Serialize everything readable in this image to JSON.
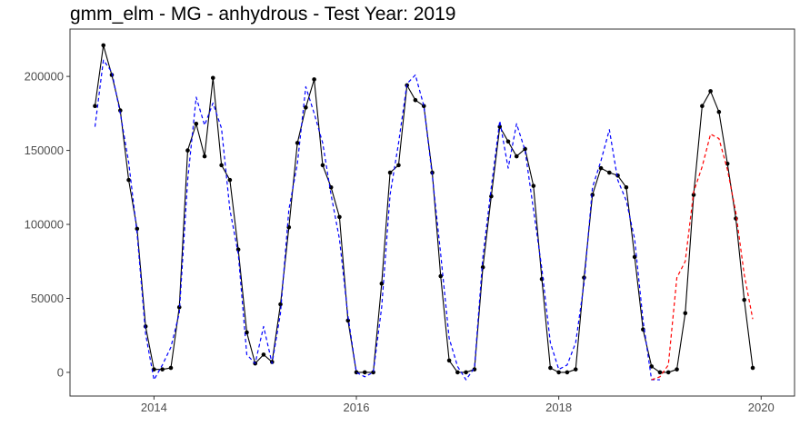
{
  "chart_data": {
    "type": "line",
    "title": "gmm_elm - MG - anhydrous - Test Year: 2019",
    "xlabel": "",
    "ylabel": "",
    "xlim": [
      2013.17,
      2020.33
    ],
    "ylim": [
      -16000,
      232000
    ],
    "x_ticks": [
      2014,
      2016,
      2018,
      2020
    ],
    "x_tick_labels": [
      "2014",
      "2016",
      "2018",
      "2020"
    ],
    "y_ticks": [
      0,
      50000,
      100000,
      150000,
      200000
    ],
    "y_tick_labels": [
      "0",
      "50000",
      "100000",
      "150000",
      "200000"
    ],
    "grid": false,
    "legend": "none",
    "series": [
      {
        "style": "solid-with-points",
        "color": "#000000",
        "x": [
          2013.417,
          2013.5,
          2013.583,
          2013.667,
          2013.75,
          2013.833,
          2013.917,
          2014.0,
          2014.083,
          2014.167,
          2014.25,
          2014.333,
          2014.417,
          2014.5,
          2014.583,
          2014.667,
          2014.75,
          2014.833,
          2014.917,
          2015.0,
          2015.083,
          2015.167,
          2015.25,
          2015.333,
          2015.417,
          2015.5,
          2015.583,
          2015.667,
          2015.75,
          2015.833,
          2015.917,
          2016.0,
          2016.083,
          2016.167,
          2016.25,
          2016.333,
          2016.417,
          2016.5,
          2016.583,
          2016.667,
          2016.75,
          2016.833,
          2016.917,
          2017.0,
          2017.083,
          2017.167,
          2017.25,
          2017.333,
          2017.417,
          2017.5,
          2017.583,
          2017.667,
          2017.75,
          2017.833,
          2017.917,
          2018.0,
          2018.083,
          2018.167,
          2018.25,
          2018.333,
          2018.417,
          2018.5,
          2018.583,
          2018.667,
          2018.75,
          2018.833,
          2018.917,
          2019.0,
          2019.083,
          2019.167,
          2019.25,
          2019.333,
          2019.417,
          2019.5,
          2019.583,
          2019.667,
          2019.75,
          2019.833,
          2019.917
        ],
        "y": [
          180000,
          221000,
          201000,
          177000,
          130000,
          97000,
          31000,
          2000,
          2000,
          3000,
          44000,
          150000,
          168000,
          146000,
          199000,
          140000,
          130000,
          83000,
          27000,
          6000,
          12000,
          7000,
          46000,
          98000,
          155000,
          179000,
          198000,
          140000,
          125000,
          105000,
          35000,
          0,
          0,
          0,
          60000,
          135000,
          140000,
          194000,
          184000,
          180000,
          135000,
          65000,
          8000,
          0,
          0,
          2000,
          71000,
          119000,
          166000,
          156000,
          146000,
          151000,
          126000,
          63000,
          3000,
          0,
          0,
          2000,
          64000,
          120000,
          138000,
          135000,
          133000,
          125000,
          78000,
          29000,
          4000,
          0,
          0,
          2000,
          40000,
          120000,
          180000,
          190000,
          176000,
          141000,
          104000,
          49000,
          3000
        ]
      },
      {
        "style": "dashed",
        "color": "#0000ff",
        "x": [
          2013.417,
          2013.5,
          2013.583,
          2013.667,
          2013.75,
          2013.833,
          2013.917,
          2014.0,
          2014.083,
          2014.167,
          2014.25,
          2014.333,
          2014.417,
          2014.5,
          2014.583,
          2014.667,
          2014.75,
          2014.833,
          2014.917,
          2015.0,
          2015.083,
          2015.167,
          2015.25,
          2015.333,
          2015.417,
          2015.5,
          2015.583,
          2015.667,
          2015.75,
          2015.833,
          2015.917,
          2016.0,
          2016.083,
          2016.167,
          2016.25,
          2016.333,
          2016.417,
          2016.5,
          2016.583,
          2016.667,
          2016.75,
          2016.833,
          2016.917,
          2017.0,
          2017.083,
          2017.167,
          2017.25,
          2017.333,
          2017.417,
          2017.5,
          2017.583,
          2017.667,
          2017.75,
          2017.833,
          2017.917,
          2018.0,
          2018.083,
          2018.167,
          2018.25,
          2018.333,
          2018.417,
          2018.5,
          2018.583,
          2018.667,
          2018.75,
          2018.833,
          2018.917,
          2019.0
        ],
        "y": [
          166000,
          211000,
          203000,
          175000,
          142000,
          94000,
          26000,
          -5000,
          5000,
          17000,
          40000,
          130000,
          186000,
          167000,
          182000,
          165000,
          110000,
          80000,
          12000,
          6000,
          31000,
          6000,
          40000,
          110000,
          141000,
          193000,
          175000,
          155000,
          120000,
          90000,
          38000,
          0,
          -3000,
          0,
          44000,
          120000,
          155000,
          195000,
          201000,
          180000,
          133000,
          80000,
          23000,
          4000,
          -5000,
          3000,
          78000,
          125000,
          170000,
          138000,
          168000,
          150000,
          110000,
          70000,
          20000,
          2000,
          5000,
          20000,
          60000,
          125000,
          143000,
          164000,
          130000,
          116000,
          90000,
          35000,
          -5000,
          -5000
        ]
      },
      {
        "style": "dashed",
        "color": "#ff0000",
        "x": [
          2018.917,
          2019.0,
          2019.083,
          2019.167,
          2019.25,
          2019.333,
          2019.417,
          2019.5,
          2019.583,
          2019.667,
          2019.75,
          2019.833,
          2019.917
        ],
        "y": [
          -5000,
          -3000,
          5000,
          64000,
          75000,
          122000,
          139000,
          161000,
          158000,
          137000,
          108000,
          66000,
          36000
        ]
      }
    ]
  }
}
